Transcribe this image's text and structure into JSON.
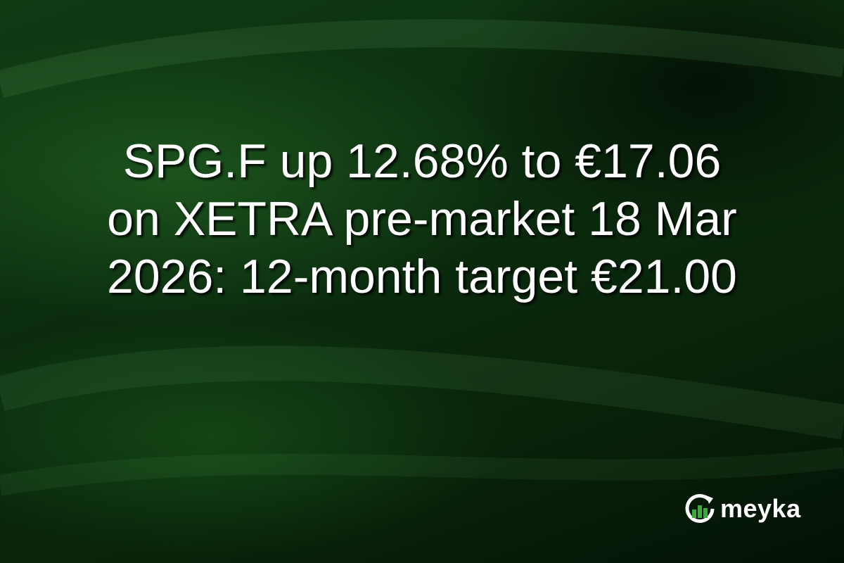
{
  "headline": {
    "line1": "SPG.F up 12.68% to €17.06",
    "line2": "on XETRA pre-market 18 Mar",
    "line3": "2026: 12-month target €21.00"
  },
  "logo": {
    "text": "meyka",
    "icon": "meyka-logo-icon",
    "accent": "#3fa93f"
  },
  "colors": {
    "background": "#0b2d0e",
    "text": "#ffffff"
  }
}
